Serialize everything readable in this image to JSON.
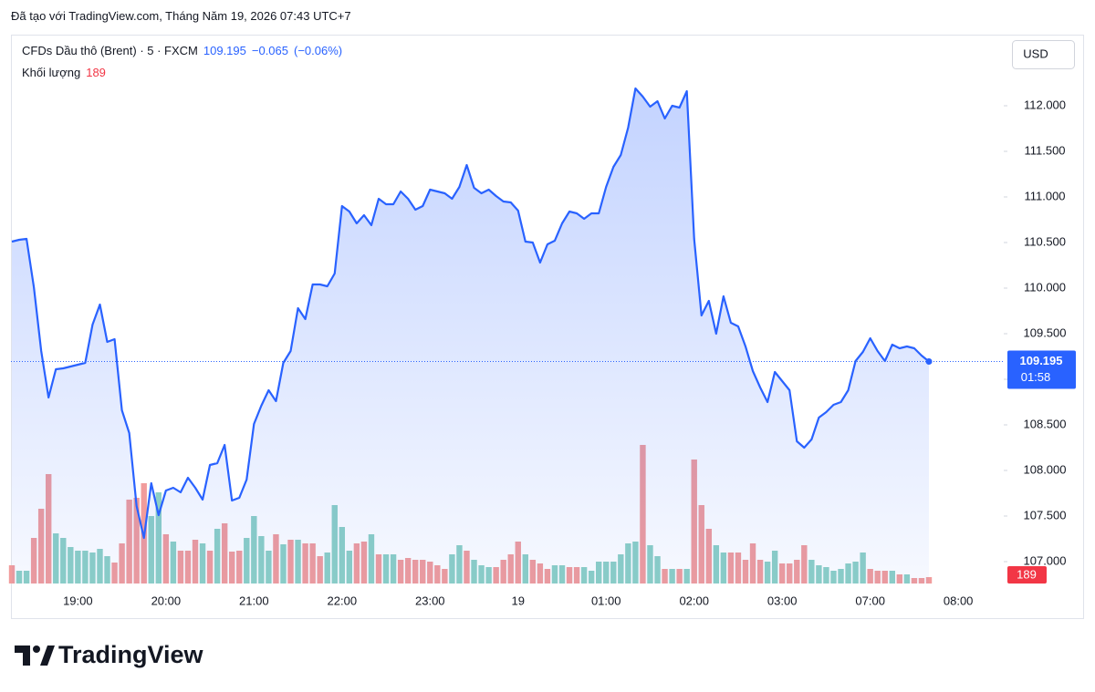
{
  "caption": "Đã tạo với TradingView.com, Tháng Năm 19, 2026 07:43 UTC+7",
  "brand": "TradingView",
  "chart_data": {
    "type": "line",
    "change_label": "−0.065",
    "change_percent_label": "(−0.06%)",
    "currency": "USD",
    "countdown": "01:58",
    "grid": false,
    "ylim": [
      106.76,
      112.78
    ],
    "yticks": [
      {
        "value": 107,
        "label": "107.000"
      },
      {
        "value": 107.5,
        "label": "107.500"
      },
      {
        "value": 108,
        "label": "108.000"
      },
      {
        "value": 108.5,
        "label": "108.500"
      },
      {
        "value": 109,
        "label": "109.000"
      },
      {
        "value": 109.5,
        "label": "109.500"
      },
      {
        "value": 110,
        "label": "110.000"
      },
      {
        "value": 110.5,
        "label": "110.500"
      },
      {
        "value": 111,
        "label": "111.000"
      },
      {
        "value": 111.5,
        "label": "111.500"
      },
      {
        "value": 112,
        "label": "112.000"
      }
    ],
    "categories": [
      null,
      null,
      null,
      null,
      null,
      null,
      null,
      null,
      null,
      "19:00",
      null,
      null,
      null,
      null,
      null,
      null,
      null,
      null,
      null,
      null,
      null,
      "20:00",
      null,
      null,
      null,
      null,
      null,
      null,
      null,
      null,
      null,
      null,
      null,
      "21:00",
      null,
      null,
      null,
      null,
      null,
      null,
      null,
      null,
      null,
      null,
      null,
      "22:00",
      null,
      null,
      null,
      null,
      null,
      null,
      null,
      null,
      null,
      null,
      null,
      "23:00",
      null,
      null,
      null,
      null,
      null,
      null,
      null,
      null,
      null,
      null,
      null,
      "19",
      null,
      null,
      null,
      null,
      null,
      null,
      null,
      null,
      null,
      null,
      null,
      "01:00",
      null,
      null,
      null,
      null,
      null,
      null,
      null,
      null,
      null,
      null,
      null,
      "02:00",
      null,
      null,
      null,
      null,
      null,
      null,
      null,
      null,
      null,
      null,
      null,
      "03:00",
      null,
      null,
      null,
      null,
      null,
      null,
      null,
      null,
      null,
      null,
      null,
      "07:00",
      null,
      null,
      null,
      null,
      null,
      null,
      null,
      null,
      null,
      null,
      null,
      "08:00"
    ],
    "series": [
      {
        "name": "CFDs Dầu thô (Brent) · 5 · FXCM",
        "color": "#2962ff",
        "values": [
          110.51,
          110.53,
          110.54,
          110.01,
          109.31,
          108.8,
          109.11,
          109.12,
          109.14,
          109.16,
          109.18,
          109.6,
          109.82,
          109.41,
          109.44,
          108.66,
          108.41,
          107.61,
          107.26,
          107.86,
          107.51,
          107.78,
          107.81,
          107.76,
          107.92,
          107.81,
          107.68,
          108.06,
          108.08,
          108.28,
          107.67,
          107.7,
          107.9,
          108.51,
          108.71,
          108.88,
          108.76,
          109.18,
          109.31,
          109.78,
          109.66,
          110.04,
          110.04,
          110.02,
          110.16,
          110.9,
          110.84,
          110.71,
          110.8,
          110.69,
          110.98,
          110.92,
          110.92,
          111.06,
          110.98,
          110.86,
          110.9,
          111.08,
          111.06,
          111.04,
          110.98,
          111.11,
          111.35,
          111.1,
          111.04,
          111.08,
          111.01,
          110.95,
          110.94,
          110.85,
          110.51,
          110.5,
          110.28,
          110.48,
          110.52,
          110.71,
          110.84,
          110.82,
          110.76,
          110.82,
          110.82,
          111.11,
          111.33,
          111.46,
          111.76,
          112.19,
          112.1,
          111.99,
          112.05,
          111.86,
          112.0,
          111.98,
          112.16,
          110.54,
          109.7,
          109.86,
          109.5,
          109.91,
          109.62,
          109.58,
          109.36,
          109.09,
          108.91,
          108.75,
          109.08,
          108.98,
          108.88,
          108.32,
          108.25,
          108.34,
          108.58,
          108.64,
          108.72,
          108.75,
          108.88,
          109.2,
          109.3,
          109.45,
          109.31,
          109.2,
          109.38,
          109.34,
          109.36,
          109.34,
          109.26,
          109.195,
          null,
          null,
          null,
          null
        ]
      },
      {
        "name": "Khối lượng",
        "type": "bar",
        "label_color": "#f23645",
        "values": [
          540,
          378,
          378,
          1350,
          2214,
          3240,
          1485,
          1350,
          1080,
          972,
          972,
          918,
          1026,
          810,
          621,
          1188,
          2484,
          2538,
          2970,
          1998,
          2700,
          1458,
          1242,
          972,
          972,
          1296,
          1188,
          972,
          1620,
          1782,
          945,
          972,
          1350,
          1998,
          1404,
          972,
          1458,
          1161,
          1296,
          1296,
          1188,
          1188,
          810,
          918,
          2322,
          1674,
          972,
          1188,
          1242,
          1458,
          864,
          864,
          864,
          702,
          756,
          702,
          702,
          648,
          540,
          432,
          864,
          1134,
          972,
          702,
          540,
          486,
          486,
          702,
          864,
          1242,
          864,
          702,
          594,
          432,
          540,
          540,
          486,
          486,
          486,
          378,
          648,
          648,
          648,
          864,
          1188,
          1242,
          4104,
          1134,
          810,
          432,
          432,
          432,
          432,
          3672,
          2322,
          1620,
          1134,
          918,
          918,
          918,
          702,
          1188,
          702,
          648,
          972,
          594,
          594,
          702,
          1134,
          702,
          540,
          486,
          378,
          432,
          594,
          648,
          918,
          432,
          378,
          378,
          378,
          270,
          270,
          162,
          162,
          189,
          null,
          null,
          null,
          null
        ],
        "colors": [
          "#f19c9c",
          "#8dd0c5",
          "#8dd0c5",
          "#f19c9c",
          "#f19c9c",
          "#f19c9c",
          "#8dd0c5",
          "#8dd0c5",
          "#8dd0c5",
          "#8dd0c5",
          "#8dd0c5",
          "#8dd0c5",
          "#8dd0c5",
          "#8dd0c5",
          "#f19c9c",
          "#f19c9c",
          "#f19c9c",
          "#f19c9c",
          "#f19c9c",
          "#8dd0c5",
          "#8dd0c5",
          "#f19c9c",
          "#8dd0c5",
          "#f19c9c",
          "#f19c9c",
          "#f19c9c",
          "#8dd0c5",
          "#f19c9c",
          "#8dd0c5",
          "#f19c9c",
          "#f19c9c",
          "#f19c9c",
          "#8dd0c5",
          "#8dd0c5",
          "#8dd0c5",
          "#8dd0c5",
          "#f19c9c",
          "#8dd0c5",
          "#f19c9c",
          "#8dd0c5",
          "#f19c9c",
          "#f19c9c",
          "#f19c9c",
          "#8dd0c5",
          "#8dd0c5",
          "#8dd0c5",
          "#8dd0c5",
          "#f19c9c",
          "#f19c9c",
          "#8dd0c5",
          "#f19c9c",
          "#8dd0c5",
          "#8dd0c5",
          "#f19c9c",
          "#f19c9c",
          "#f19c9c",
          "#f19c9c",
          "#f19c9c",
          "#f19c9c",
          "#f19c9c",
          "#8dd0c5",
          "#8dd0c5",
          "#f19c9c",
          "#8dd0c5",
          "#8dd0c5",
          "#8dd0c5",
          "#f19c9c",
          "#f19c9c",
          "#f19c9c",
          "#f19c9c",
          "#8dd0c5",
          "#f19c9c",
          "#f19c9c",
          "#f19c9c",
          "#8dd0c5",
          "#8dd0c5",
          "#f19c9c",
          "#f19c9c",
          "#8dd0c5",
          "#8dd0c5",
          "#8dd0c5",
          "#8dd0c5",
          "#8dd0c5",
          "#8dd0c5",
          "#8dd0c5",
          "#8dd0c5",
          "#f19c9c",
          "#8dd0c5",
          "#8dd0c5",
          "#f19c9c",
          "#8dd0c5",
          "#f19c9c",
          "#8dd0c5",
          "#f19c9c",
          "#f19c9c",
          "#f19c9c",
          "#8dd0c5",
          "#8dd0c5",
          "#f19c9c",
          "#f19c9c",
          "#f19c9c",
          "#f19c9c",
          "#f19c9c",
          "#8dd0c5",
          "#8dd0c5",
          "#f19c9c",
          "#f19c9c",
          "#f19c9c",
          "#f19c9c",
          "#8dd0c5",
          "#8dd0c5",
          "#8dd0c5",
          "#8dd0c5",
          "#8dd0c5",
          "#8dd0c5",
          "#8dd0c5",
          "#8dd0c5",
          "#f19c9c",
          "#f19c9c",
          "#f19c9c",
          "#8dd0c5",
          "#f19c9c",
          "#8dd0c5",
          "#f19c9c",
          "#f19c9c",
          "#f19c9c",
          null,
          null,
          null,
          null
        ]
      }
    ]
  }
}
